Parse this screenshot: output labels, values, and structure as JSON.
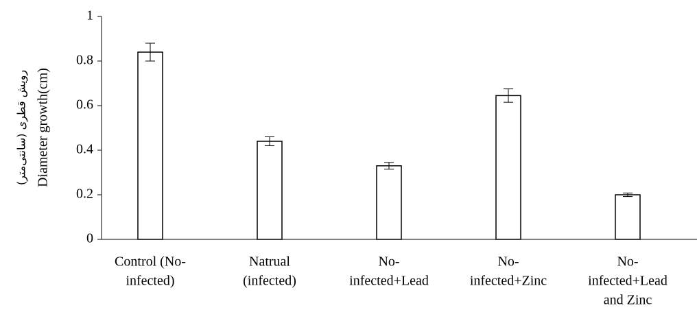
{
  "chart_data": {
    "type": "bar",
    "ylabel": [
      "رویش قطری (سانتی‌متر)",
      "Diameter growth(cm)"
    ],
    "categories": [
      [
        "Control (No-",
        "infected)"
      ],
      [
        "Natrual",
        "(infected)"
      ],
      [
        "No-",
        "infected+Lead"
      ],
      [
        "No-",
        "infected+Zinc"
      ],
      [
        "No-",
        "infected+Lead",
        "and Zinc"
      ]
    ],
    "values": [
      0.84,
      0.44,
      0.33,
      0.645,
      0.2
    ],
    "errors": [
      0.04,
      0.02,
      0.015,
      0.03,
      0.008
    ],
    "color": "#ffffff",
    "ylim": [
      0,
      1
    ],
    "yticks": [
      0,
      0.2,
      0.4,
      0.6,
      0.8,
      1
    ],
    "grid": false
  }
}
